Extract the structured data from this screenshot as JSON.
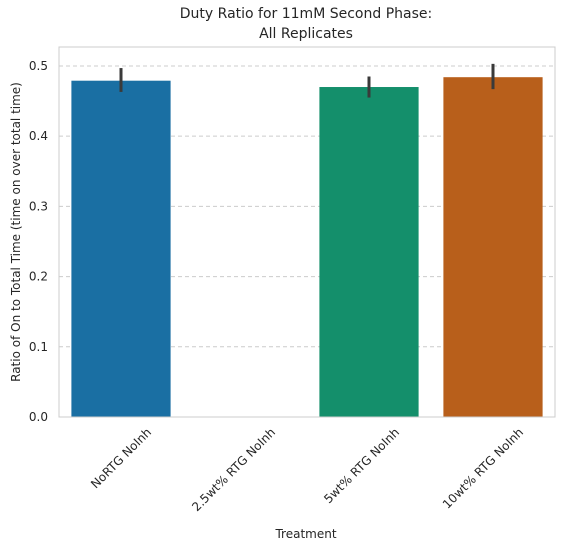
{
  "chart_data": {
    "type": "bar",
    "title_line1": "Duty Ratio for 11mM Second Phase:",
    "title_line2": "All Replicates",
    "xlabel": "Treatment",
    "ylabel": "Ratio of On to Total Time (time on over total time)",
    "categories": [
      "NoRTG NoInh",
      "2.5wt% RTG NoInh",
      "5wt% RTG NoInh",
      "10wt% RTG NoInh"
    ],
    "values": [
      0.479,
      null,
      0.47,
      0.484
    ],
    "error_low": [
      0.463,
      null,
      0.455,
      0.467
    ],
    "error_high": [
      0.497,
      null,
      0.485,
      0.503
    ],
    "colors": [
      "#1a6fa3",
      null,
      "#148f6b",
      "#b85f1b"
    ],
    "ylim": [
      0,
      0.527
    ],
    "yticks": [
      0.0,
      0.1,
      0.2,
      0.3,
      0.4,
      0.5
    ],
    "ytick_labels": [
      "0.0",
      "0.1",
      "0.2",
      "0.3",
      "0.4",
      "0.5"
    ],
    "grid": "horizontal dashed",
    "legend": "none"
  }
}
